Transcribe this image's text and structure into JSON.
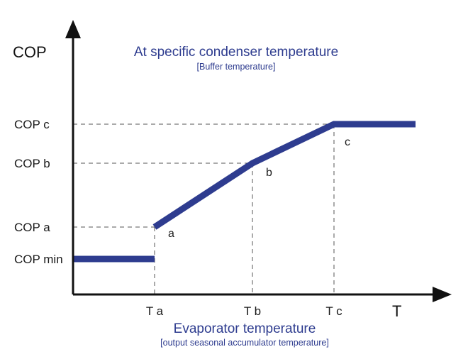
{
  "chart_data": {
    "type": "line",
    "title": "At specific condenser temperature",
    "subtitle": "[Buffer temperature]",
    "ylabel": "COP",
    "xlabel_symbol": "T",
    "xlabel": "Evaporator temperature",
    "xlabel_sub": "[output seasonal accumulator temperature]",
    "x_ticks": [
      "T a",
      "T b",
      "T c"
    ],
    "y_ticks": [
      "COP min",
      "COP a",
      "COP b",
      "COP c"
    ],
    "xlim": [
      0,
      5
    ],
    "ylim": [
      0,
      5
    ],
    "x_tick_values": [
      1,
      2.2,
      3.2
    ],
    "y_tick_values": [
      0.5,
      0.95,
      1.85,
      2.4
    ],
    "series": [
      {
        "x": [
          0,
          1
        ],
        "y": [
          0.5,
          0.5
        ]
      },
      {
        "x": [
          1,
          2.2,
          3.2,
          4.2
        ],
        "y": [
          0.95,
          1.85,
          2.4,
          2.4
        ]
      }
    ],
    "point_labels": [
      {
        "text": "a",
        "x": 1,
        "y": 0.95
      },
      {
        "text": "b",
        "x": 2.2,
        "y": 1.85
      },
      {
        "text": "c",
        "x": 3.2,
        "y": 2.4
      }
    ],
    "colors": {
      "series": "#2e3c8f",
      "title": "#2e3c8f",
      "axis": "#111111",
      "guide": "#555555"
    }
  }
}
